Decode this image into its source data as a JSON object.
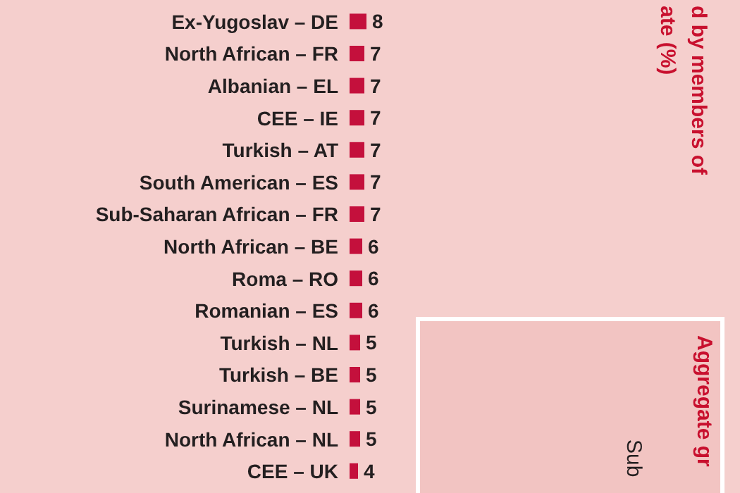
{
  "chart_data": {
    "type": "bar",
    "orientation": "horizontal",
    "title": "d by members of\nate (%)",
    "categories": [
      "Ex-Yugoslav – DE",
      "North African – FR",
      "Albanian – EL",
      "CEE – IE",
      "Turkish – AT",
      "South American – ES",
      "Sub-Saharan African – FR",
      "North African – BE",
      "Roma – RO",
      "Romanian – ES",
      "Turkish – NL",
      "Turkish – BE",
      "Surinamese – NL",
      "North African – NL",
      "CEE – UK"
    ],
    "values": [
      8,
      7,
      7,
      7,
      7,
      7,
      7,
      6,
      6,
      6,
      5,
      5,
      5,
      5,
      4
    ],
    "color": "#c4103c",
    "data_labels": true,
    "annotations": [
      "Aggregate gr",
      "Sub"
    ]
  }
}
